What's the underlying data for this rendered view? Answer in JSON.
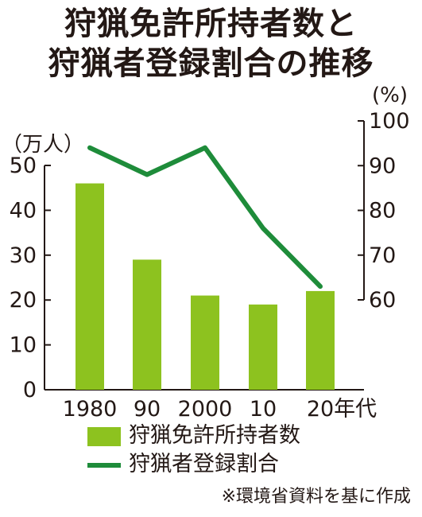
{
  "chart_data": {
    "type": "bar+line",
    "title": "狩猟免許所持者数と狩猟者登録割合の推移",
    "title_lines": [
      "狩猟免許所持者数と",
      "狩猟者登録割合の推移"
    ],
    "categories": [
      "1980",
      "90",
      "2000",
      "10",
      "20年代"
    ],
    "left_unit": "（万人）",
    "right_unit": "(%)",
    "left_ticks": [
      "0",
      "10",
      "20",
      "30",
      "40",
      "50"
    ],
    "right_ticks": [
      "60",
      "70",
      "80",
      "90",
      "100"
    ],
    "left_ylim": [
      0,
      50
    ],
    "right_ylim": [
      60,
      100
    ],
    "series": [
      {
        "name": "狩猟免許所持者数",
        "type": "bar",
        "axis": "left",
        "values": [
          46,
          29,
          21,
          19,
          22
        ]
      },
      {
        "name": "狩猟者登録割合",
        "type": "line",
        "axis": "right",
        "values": [
          94,
          88,
          94,
          76,
          63
        ]
      }
    ],
    "source": "※環境省資料を基に作成",
    "colors": {
      "bar": "#8dc21f",
      "line": "#1e8c3a",
      "axis": "#231815"
    }
  }
}
